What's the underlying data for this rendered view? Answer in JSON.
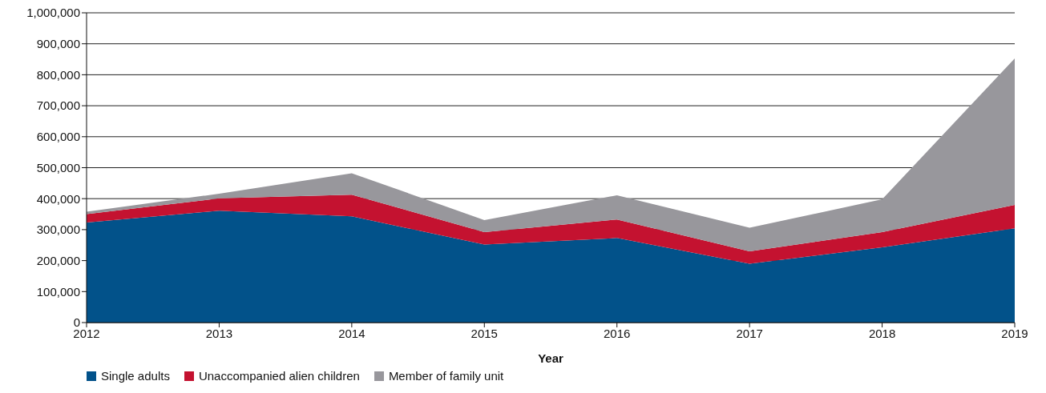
{
  "chart_data": {
    "type": "area",
    "stacked": true,
    "xlabel": "Year",
    "x": [
      2012,
      2013,
      2014,
      2015,
      2016,
      2017,
      2018,
      2019
    ],
    "xlim": [
      2012,
      2019
    ],
    "xticks": [
      2012,
      2013,
      2014,
      2015,
      2016,
      2017,
      2018,
      2019
    ],
    "ylim": [
      0,
      1000000
    ],
    "yticks": [
      {
        "value": 0,
        "label": "0"
      },
      {
        "value": 100000,
        "label": "100,000"
      },
      {
        "value": 200000,
        "label": "200,000"
      },
      {
        "value": 300000,
        "label": "300,000"
      },
      {
        "value": 400000,
        "label": "400,000"
      },
      {
        "value": 500000,
        "label": "500,000"
      },
      {
        "value": 600000,
        "label": "600,000"
      },
      {
        "value": 700000,
        "label": "700,000"
      },
      {
        "value": 800000,
        "label": "800,000"
      },
      {
        "value": 900000,
        "label": "900,000"
      },
      {
        "value": 1000000,
        "label": "1,000,000"
      }
    ],
    "grid": "y",
    "legend": "bottom left",
    "series": [
      {
        "name": "Single adults",
        "color": "#02528a",
        "values": [
          323000,
          361000,
          343000,
          252000,
          273000,
          190000,
          243000,
          304000
        ]
      },
      {
        "name": "Unaccompanied alien children",
        "color": "#c41230",
        "values": [
          27000,
          40000,
          70000,
          40000,
          60000,
          40000,
          49000,
          76000
        ]
      },
      {
        "name": "Member of family unit",
        "color": "#98979c",
        "values": [
          8000,
          15000,
          69000,
          39000,
          78000,
          76000,
          106000,
          473000
        ]
      }
    ]
  }
}
